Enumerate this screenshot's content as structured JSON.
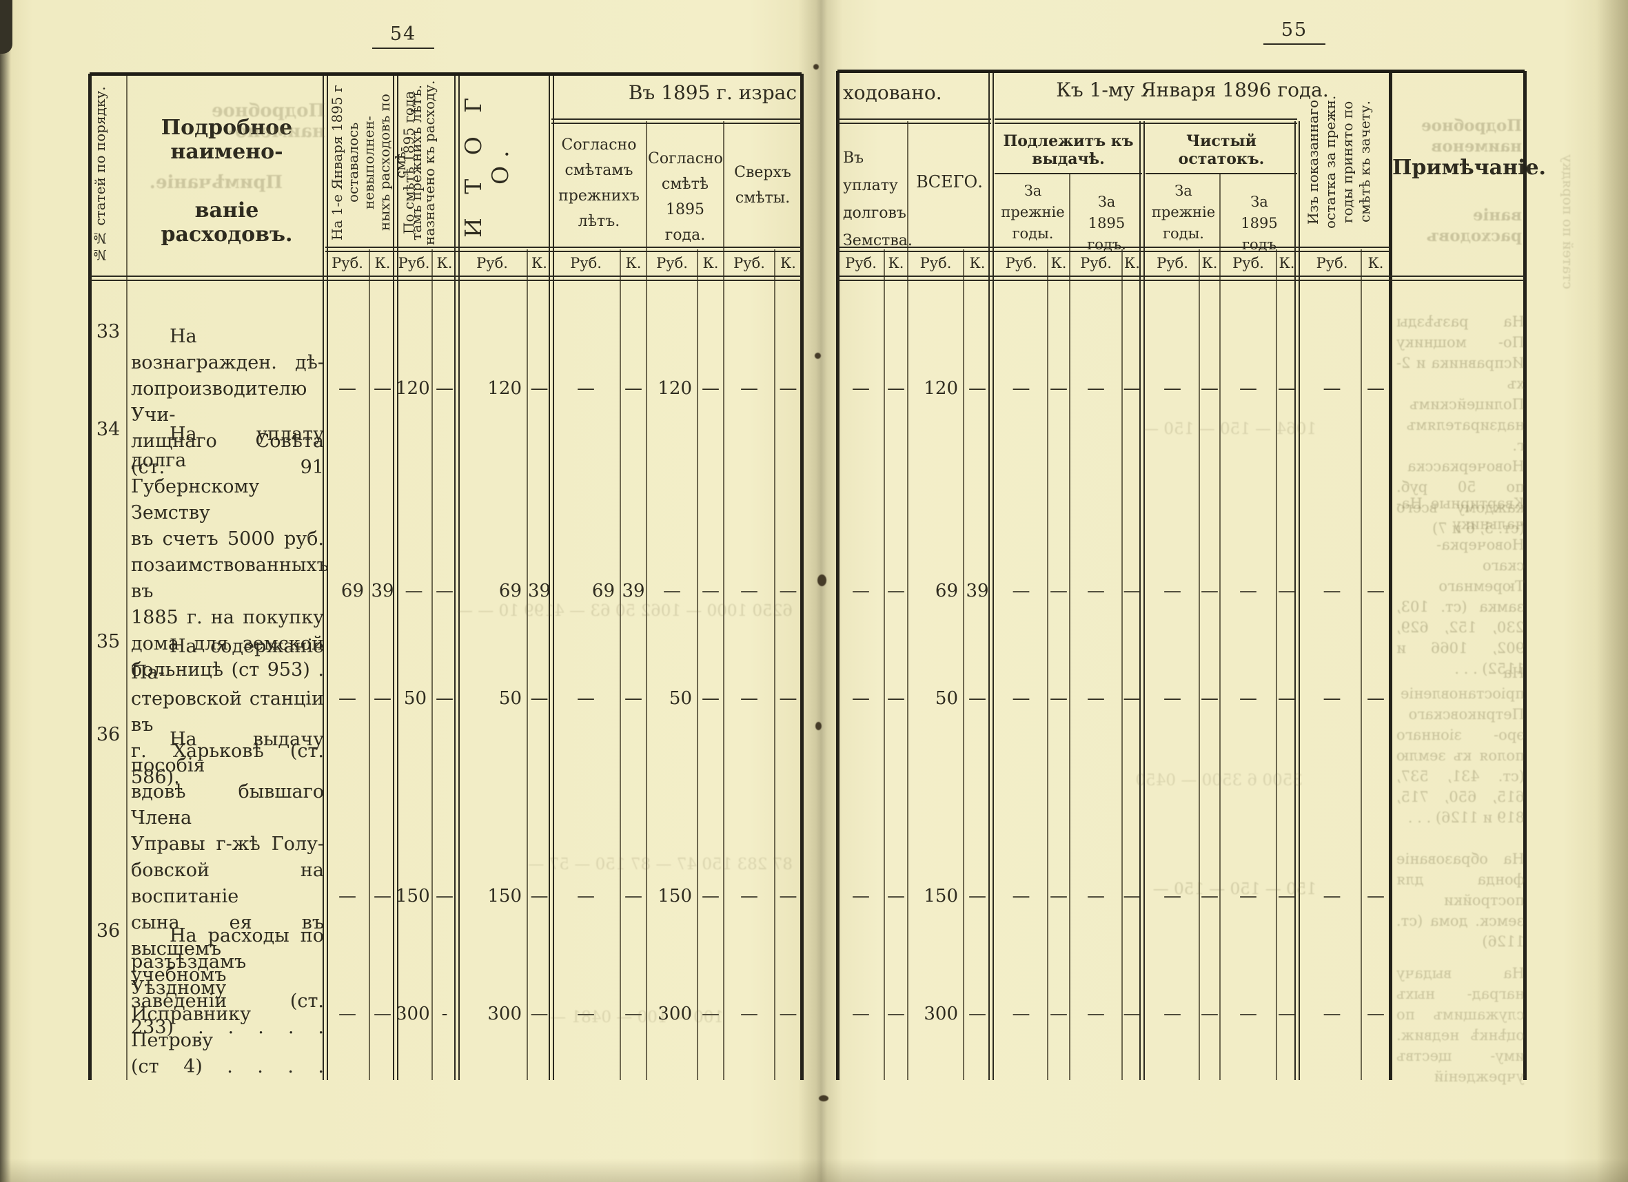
{
  "page": {
    "left_number": "54",
    "right_number": "55"
  },
  "table": {
    "units": {
      "rub": "Руб.",
      "kop": "К."
    },
    "headers": {
      "num_col": "№№ статей по порядку.",
      "name_line1": "Подробное наимено-",
      "name_line2": "ваніе расходовъ.",
      "opening_balance": "На 1-е Января 1895 г\nоставалось невыполнен-\nныхъ расходовъ по смѣ-\nтамъ прежнихъ лѣтъ.",
      "estimate_1895": "По смѣтѣ 1895 года\nназначено къ расходу.",
      "itogo": "И Т О Г О.",
      "spent_1895_part1": "Въ 1895 г. израс",
      "spent_1895_part2": "ходовано.",
      "per_prev_estimates": "Согласно\nсмѣтамъ\nпрежнихъ\nлѣтъ.",
      "per_1895_estimate": "Согласно\nсмѣтѣ\n1895 года.",
      "over_estimate": "Сверхъ\nсмѣты.",
      "debt_payment": "Въ уплату\nдолговъ\nЗемства.",
      "vsego": "ВСЕГО.",
      "to_jan_1896": "Къ 1-му Января 1896 года.",
      "due_for_issue": "Подлежитъ къ выдачѣ.",
      "due_prev_years": "За\nпрежніе\nгоды.",
      "due_1895": "За\n1895 годъ.",
      "net_remainder": "Чистый остатокъ.",
      "net_prev_years": "За\nпрежніе\nгоды.",
      "net_1895": "За\n1895 годъ",
      "carried_to_offset": "Изъ показаннаго\nостатка за прежн.\nгоды принято по\nсмѣтѣ къ зачету.",
      "note": "Примѣчаніе."
    },
    "rows": [
      {
        "no": "33",
        "lines": [
          "На вознагражден. дѣ-",
          "лопроизводителю Учи-",
          "лищнаго Совѣта (ст. 91"
        ],
        "values": [
          [
            "—",
            "—"
          ],
          [
            "120",
            "—"
          ],
          [
            "120",
            "—"
          ],
          [
            "—",
            "—"
          ],
          [
            "120",
            "—"
          ],
          [
            "—",
            "—"
          ],
          [
            "—",
            "—"
          ],
          [
            "120",
            "—"
          ],
          [
            "—",
            "—"
          ],
          [
            "—",
            "—"
          ],
          [
            "—",
            "—"
          ],
          [
            "—",
            "—"
          ],
          [
            "—",
            "—"
          ]
        ]
      },
      {
        "no": "34",
        "lines": [
          "На уплату долга",
          "Губернскому Земству",
          "въ счетъ 5000 руб.",
          "позаимствованныхъ въ",
          "1885 г. на покупку",
          "дома для земской",
          "больницѣ (ст 953) ."
        ],
        "values": [
          [
            "69",
            "39"
          ],
          [
            "—",
            "—"
          ],
          [
            "69",
            "39"
          ],
          [
            "69",
            "39"
          ],
          [
            "—",
            "—"
          ],
          [
            "—",
            "—"
          ],
          [
            "—",
            "—"
          ],
          [
            "69",
            "39"
          ],
          [
            "—",
            "—"
          ],
          [
            "—",
            "—"
          ],
          [
            "—",
            "—"
          ],
          [
            "—",
            "—"
          ],
          [
            "—",
            "—"
          ]
        ]
      },
      {
        "no": "35",
        "lines": [
          "На содержаніе Па-",
          "стеровской станціи въ",
          "г. Харьковѣ (ст. 586)."
        ],
        "values": [
          [
            "—",
            "—"
          ],
          [
            "50",
            "—"
          ],
          [
            "50",
            "—"
          ],
          [
            "—",
            "—"
          ],
          [
            "50",
            "—"
          ],
          [
            "—",
            "—"
          ],
          [
            "—",
            "—"
          ],
          [
            "50",
            "—"
          ],
          [
            "—",
            "—"
          ],
          [
            "—",
            "—"
          ],
          [
            "—",
            "—"
          ],
          [
            "—",
            "—"
          ],
          [
            "—",
            "—"
          ]
        ]
      },
      {
        "no": "36",
        "lines": [
          "На выдачу пособія",
          "вдовѣ бывшаго Члена",
          "Управы г-жѣ Голу-",
          "бовской на воспитаніе",
          "сына ея въ высшемъ",
          "учебномъ заведеніи (ст.",
          "233) .    .    .    .    ."
        ],
        "values": [
          [
            "—",
            "—"
          ],
          [
            "150",
            "—"
          ],
          [
            "150",
            "—"
          ],
          [
            "—",
            "—"
          ],
          [
            "150",
            "—"
          ],
          [
            "—",
            "—"
          ],
          [
            "—",
            "—"
          ],
          [
            "150",
            "—"
          ],
          [
            "—",
            "—"
          ],
          [
            "—",
            "—"
          ],
          [
            "—",
            "—"
          ],
          [
            "—",
            "—"
          ],
          [
            "—",
            "—"
          ]
        ]
      },
      {
        "no": "36",
        "lines": [
          "На расходы по",
          "разъѣздамъ Уѣздному",
          "Исправнику Петрову",
          "(ст 4)  .    .    .    ."
        ],
        "values": [
          [
            "—",
            "—"
          ],
          [
            "300",
            "-"
          ],
          [
            "300",
            "—"
          ],
          [
            "—",
            "—"
          ],
          [
            "300",
            "—"
          ],
          [
            "—",
            "—"
          ],
          [
            "—",
            "—"
          ],
          [
            "300",
            "—"
          ],
          [
            "—",
            "—"
          ],
          [
            "—",
            "—"
          ],
          [
            "—",
            "—"
          ],
          [
            "—",
            "—"
          ],
          [
            "—",
            "—"
          ]
        ]
      }
    ]
  },
  "bleedthrough": [
    "Подробное наимено-",
    "Примѣчаніе.",
    "Подробное наименов",
    "ваніе расходовъ",
    "На разъѣзды По- мощнику Исправника и 2-хъ Полицейскимъ надзирателямъ г. Новочеркасска по 50 руб. каждому всего (ст. 5, 6 и 7)",
    "Квартирные На- чальнику Новочерка- скаго Тюремнаго замка (ст. 103, 230, 152, 629, 902, 1066 и 1152) . . .",
    "На пріостановленіе Петриковскаго эро- зіоннаго полоя къ землю (ст. 431, 537, 615, 650, 715, 819 и 1126) . . .",
    "На образованіе фонда для постройки земск. дома (ст. 1126)",
    "На выдачу наград- ныхъ служащимъ по оцѣнкѣ недвиж. иму- ществъ учрежденій",
    "6250 1000 — 1062 50  63 — 4199 10 — —",
    "87 283 150 47 — 87 150 — 57 —",
    "150 — 150 — 150 —",
    "1064 — 150 — 150 —",
    "3500 6 3500 — 0450",
    "100 — 100 — 0481 —",
    "статей по порядку"
  ]
}
